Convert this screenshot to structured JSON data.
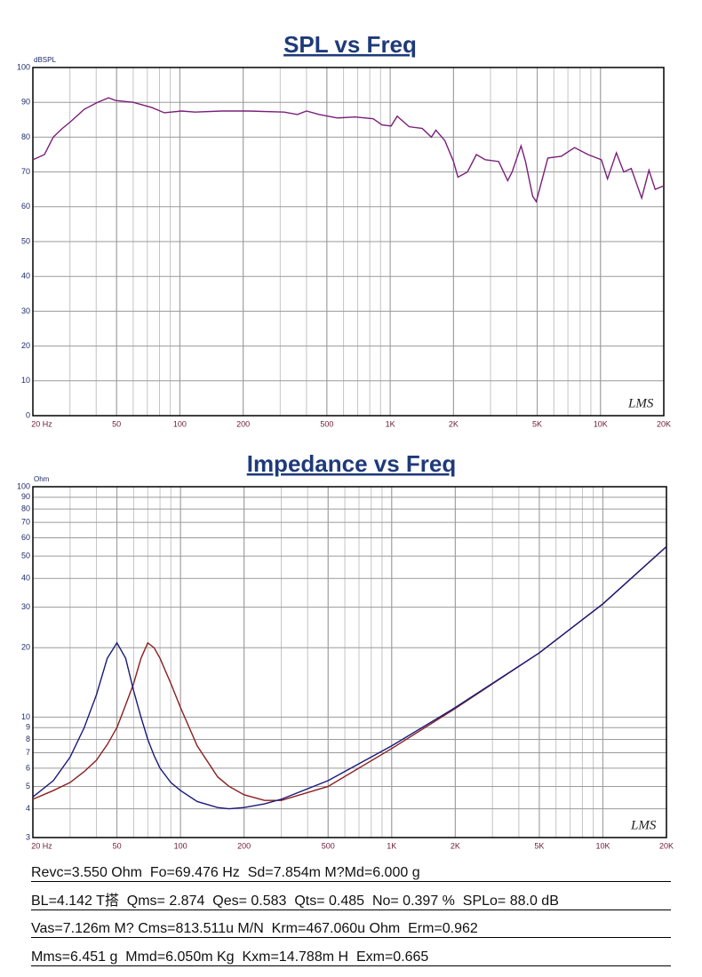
{
  "chart_data": [
    {
      "type": "line",
      "title": "SPL vs Freq",
      "ylabel": "dBSPL",
      "annotation": "LMS",
      "xscale": "log",
      "grid": true,
      "minor_grid": true,
      "xlim": [
        20,
        20000
      ],
      "ylim": [
        0,
        100
      ],
      "xticks": [
        {
          "value": 20,
          "label": "20 Hz"
        },
        50,
        100,
        200,
        500,
        {
          "value": 1000,
          "label": "1K"
        },
        {
          "value": 2000,
          "label": "2K"
        },
        {
          "value": 5000,
          "label": "5K"
        },
        {
          "value": 10000,
          "label": "10K"
        },
        {
          "value": 20000,
          "label": "20K"
        }
      ],
      "yticks": [
        0,
        10,
        20,
        30,
        40,
        50,
        60,
        70,
        80,
        90,
        100
      ],
      "x": [
        20,
        22.7,
        25,
        27.6,
        30.3,
        35.1,
        40.6,
        45.8,
        49.6,
        60,
        73.6,
        84.3,
        102,
        118,
        158,
        212,
        313,
        362,
        400,
        460,
        560,
        680,
        830,
        915,
        1010,
        1080,
        1230,
        1420,
        1570,
        1650,
        1820,
        2000,
        2100,
        2330,
        2570,
        2830,
        3280,
        3620,
        3800,
        4190,
        4400,
        4760,
        4950,
        5620,
        6510,
        7530,
        8720,
        10100,
        10800,
        11900,
        12900,
        14000,
        15700,
        17000,
        18200,
        20000
      ],
      "series": [
        {
          "color": "#7a1f7a",
          "values": [
            73.5,
            75,
            80,
            82.5,
            84.5,
            88,
            90,
            91.3,
            90.5,
            90,
            88.5,
            87,
            87.5,
            87.2,
            87.5,
            87.5,
            87.2,
            86.5,
            87.5,
            86.5,
            85.5,
            85.8,
            85.3,
            83.5,
            83.2,
            86,
            83,
            82.5,
            80,
            82,
            79,
            73,
            68.5,
            70,
            75,
            73.5,
            73,
            67.5,
            70,
            77.5,
            73,
            63,
            61.5,
            74,
            74.5,
            77,
            75,
            73.5,
            68,
            75.5,
            70,
            71,
            62.5,
            70.5,
            65,
            66
          ]
        }
      ]
    },
    {
      "type": "line",
      "title": "Impedance vs Freq",
      "ylabel": "Ohm",
      "annotation": "LMS",
      "xscale": "log",
      "yscale": "log",
      "grid": true,
      "minor_grid": true,
      "xlim": [
        20,
        20000
      ],
      "ylim": [
        3,
        100
      ],
      "xticks": [
        {
          "value": 20,
          "label": "20 Hz"
        },
        50,
        100,
        200,
        500,
        {
          "value": 1000,
          "label": "1K"
        },
        {
          "value": 2000,
          "label": "2K"
        },
        {
          "value": 5000,
          "label": "5K"
        },
        {
          "value": 10000,
          "label": "10K"
        },
        {
          "value": 20000,
          "label": "20K"
        }
      ],
      "yticks": [
        3,
        4,
        5,
        6,
        7,
        8,
        9,
        10,
        20,
        30,
        40,
        50,
        60,
        70,
        80,
        90,
        100
      ],
      "x": [
        20,
        25,
        30,
        35,
        40,
        45,
        50,
        55,
        60,
        65,
        70,
        75,
        80,
        90,
        100,
        120,
        150,
        170,
        200,
        250,
        300,
        500,
        1000,
        2000,
        5000,
        10000,
        20000
      ],
      "series": [
        {
          "color": "#8a1f1f",
          "values": [
            4.4,
            4.8,
            5.2,
            5.8,
            6.5,
            7.6,
            9,
            11.3,
            14,
            18,
            21,
            20,
            18,
            14,
            11,
            7.5,
            5.5,
            5,
            4.6,
            4.35,
            4.35,
            5,
            7.3,
            10.9,
            19,
            31,
            55
          ]
        },
        {
          "color": "#1a1a7a",
          "values": [
            4.5,
            5.3,
            6.7,
            9,
            12.5,
            18,
            21,
            18,
            13,
            10,
            8,
            6.8,
            6,
            5.2,
            4.8,
            4.3,
            4.05,
            4.0,
            4.05,
            4.2,
            4.4,
            5.3,
            7.5,
            11,
            19,
            31,
            55
          ]
        }
      ]
    }
  ],
  "parameters": [
    "Revc=3.550 Ohm  Fo=69.476 Hz  Sd=7.854m M?Md=6.000 g",
    "BL=4.142 T搭  Qms= 2.874  Qes= 0.583  Qts= 0.485  No= 0.397 %  SPLo= 88.0 dB",
    "Vas=7.126m M? Cms=813.511u M/N  Krm=467.060u Ohm  Erm=0.962",
    "Mms=6.451 g  Mmd=6.050m Kg  Kxm=14.788m H  Exm=0.665"
  ]
}
